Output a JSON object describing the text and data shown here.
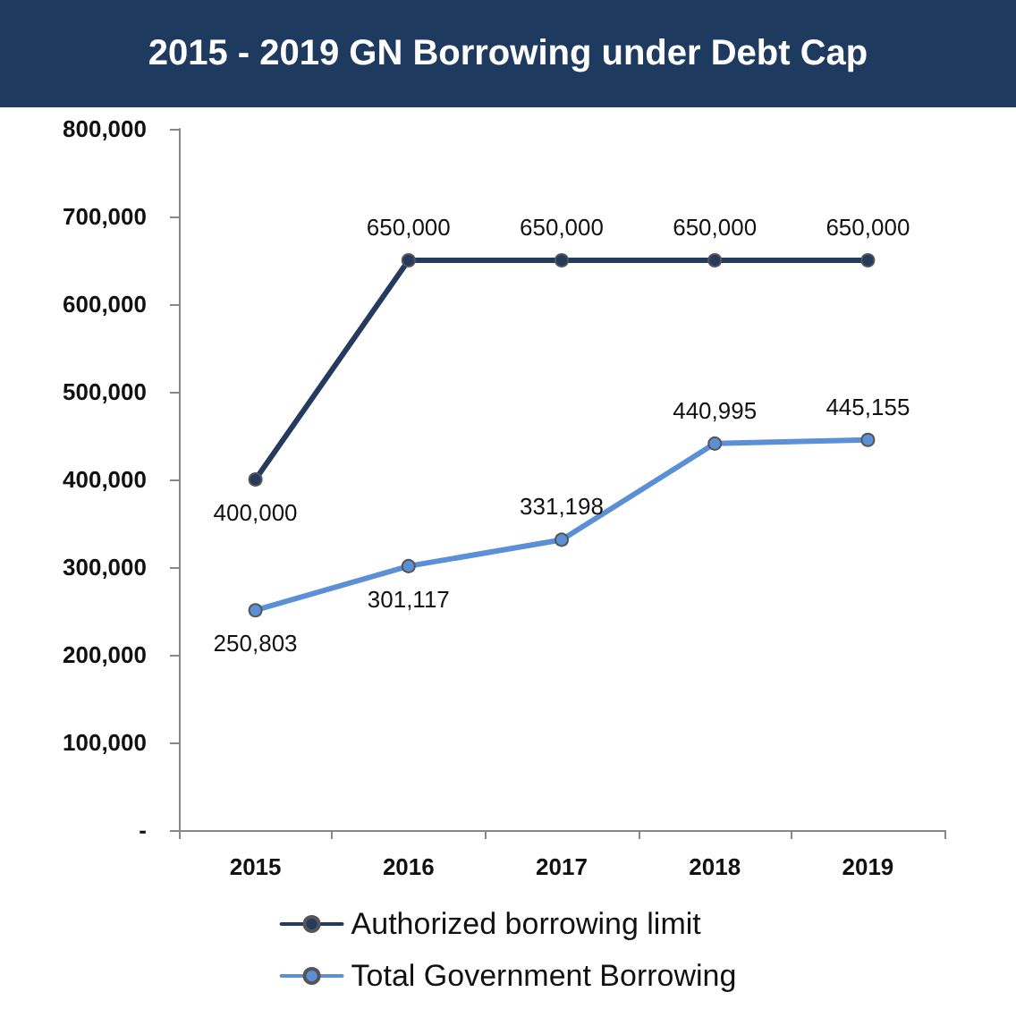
{
  "chart_data": {
    "type": "line",
    "title": "2015 - 2019  GN Borrowing under Debt Cap",
    "categories": [
      "2015",
      "2016",
      "2017",
      "2018",
      "2019"
    ],
    "series": [
      {
        "name": "Authorized borrowing limit",
        "color": "#243a5e",
        "values": [
          400000,
          650000,
          650000,
          650000,
          650000
        ],
        "value_labels": [
          "400,000",
          "650,000",
          "650,000",
          "650,000",
          "650,000"
        ]
      },
      {
        "name": "Total Government Borrowing",
        "color": "#5b8fd6",
        "values": [
          250803,
          301117,
          331198,
          440995,
          445155
        ],
        "value_labels": [
          "250,803",
          "301,117",
          "331,198",
          "440,995",
          "445,155"
        ]
      }
    ],
    "ylim": [
      0,
      800000
    ],
    "yticks": [
      {
        "value": 0,
        "label": "-"
      },
      {
        "value": 100000,
        "label": "100,000"
      },
      {
        "value": 200000,
        "label": "200,000"
      },
      {
        "value": 300000,
        "label": "300,000"
      },
      {
        "value": 400000,
        "label": "400,000"
      },
      {
        "value": 500000,
        "label": "500,000"
      },
      {
        "value": 600000,
        "label": "600,000"
      },
      {
        "value": 700000,
        "label": "700,000"
      },
      {
        "value": 800000,
        "label": "800,000"
      }
    ],
    "grid": false,
    "legend": "bottom",
    "marker": "circle",
    "line_style": "solid"
  }
}
